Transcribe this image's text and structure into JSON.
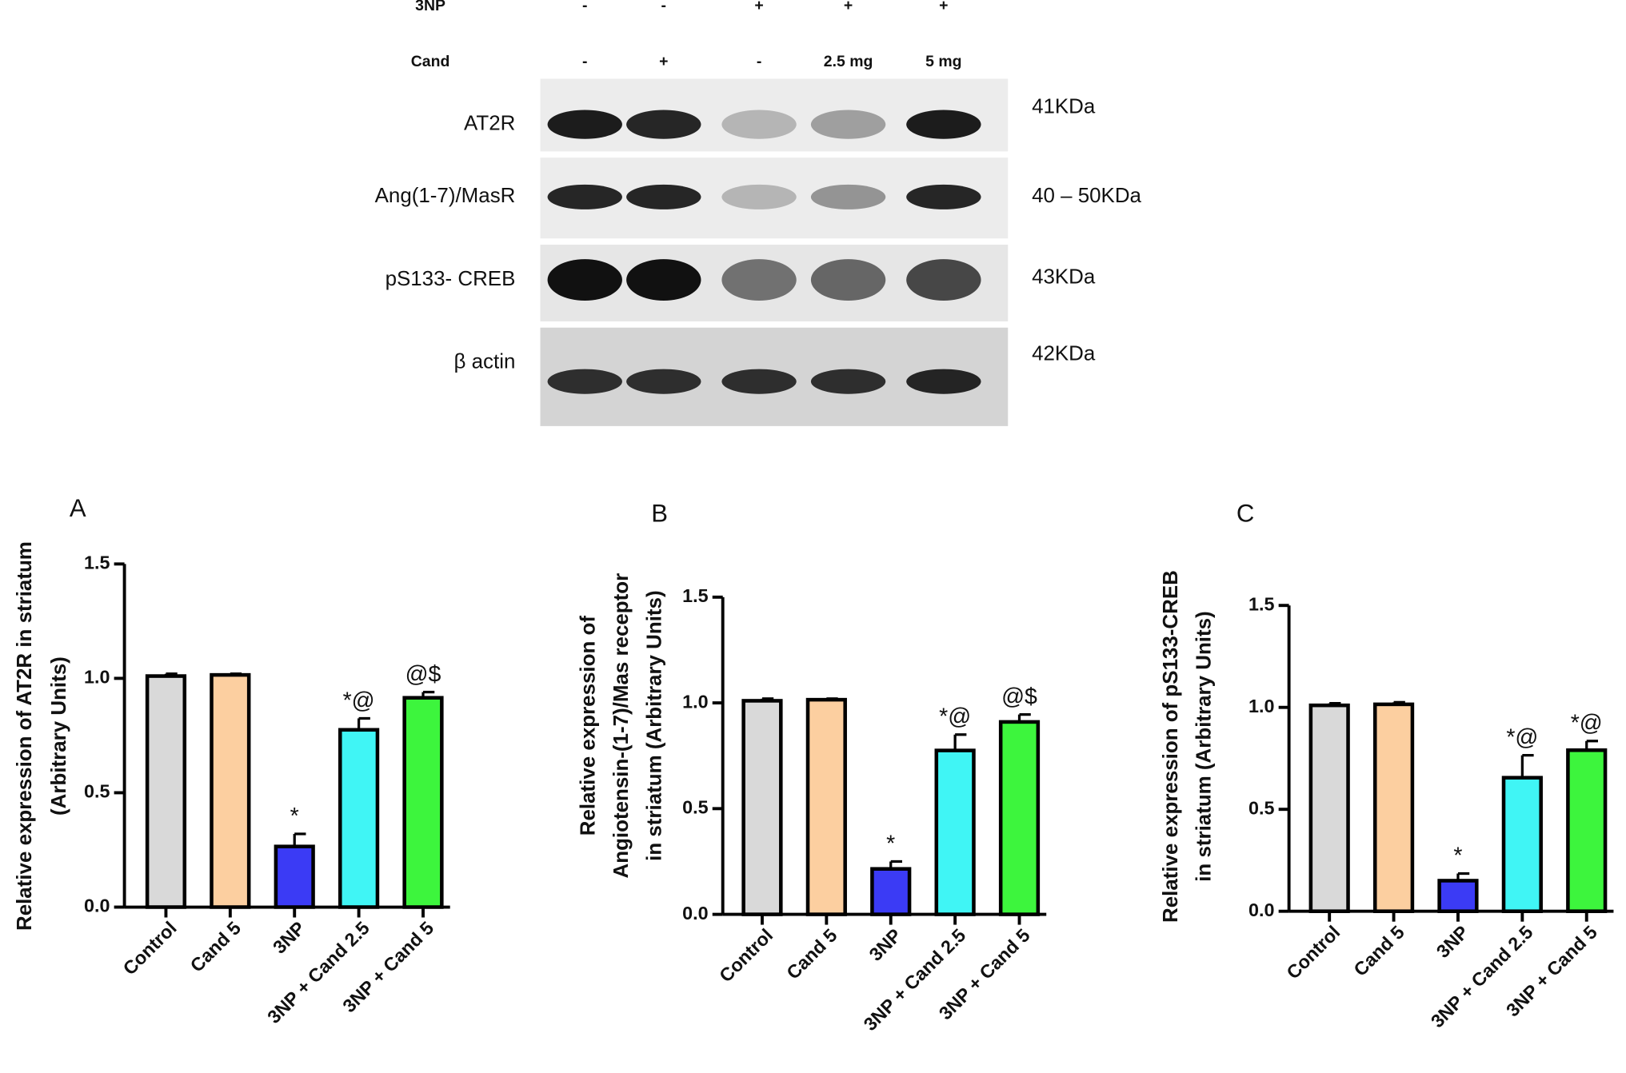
{
  "blot": {
    "conditions": [
      {
        "label": "3NP",
        "values": [
          "-",
          "-",
          "+",
          "+",
          "+"
        ]
      },
      {
        "label": "Cand",
        "values": [
          "-",
          "+",
          "-",
          "2.5 mg",
          "5 mg"
        ]
      }
    ],
    "bands": [
      {
        "label": "AT2R",
        "size": "41KDa"
      },
      {
        "label": "Ang(1-7)/MasR",
        "size": "40 – 50KDa"
      },
      {
        "label": "pS133- CREB",
        "size": "43KDa"
      },
      {
        "label": "β actin",
        "size": "42KDa"
      }
    ]
  },
  "chart_data": [
    {
      "type": "bar",
      "panel": "A",
      "ylabel": [
        "Relative expression of AT2R in striatum",
        "(Arbitrary Units)"
      ],
      "categories": [
        "Control",
        "Cand 5",
        "3NP",
        "3NP + Cand 2.5",
        "3NP + Cand 5"
      ],
      "values": [
        1.01,
        1.015,
        0.265,
        0.775,
        0.915
      ],
      "errors": [
        0.01,
        0.005,
        0.055,
        0.05,
        0.025
      ],
      "annotations": [
        null,
        null,
        "*",
        "*@",
        "@$"
      ],
      "colors": [
        "#d9d9d9",
        "#fccfa0",
        "#3b3bf5",
        "#40f5f5",
        "#3df53d"
      ],
      "ylim": [
        0,
        1.5
      ],
      "yticks": [
        {
          "value": 0,
          "label": "0.0"
        },
        {
          "value": 0.5,
          "label": "0.5"
        },
        {
          "value": 1,
          "label": "1.0"
        },
        {
          "value": 1.5,
          "label": "1.5"
        }
      ]
    },
    {
      "type": "bar",
      "panel": "B",
      "ylabel": [
        "Relative expression of",
        "Angiotensin-(1-7)/Mas receptor",
        "in striatum (Arbitrary Units)"
      ],
      "categories": [
        "Control",
        "Cand 5",
        "3NP",
        "3NP + Cand 2.5",
        "3NP + Cand 5"
      ],
      "values": [
        1.01,
        1.015,
        0.215,
        0.775,
        0.91
      ],
      "errors": [
        0.01,
        0.005,
        0.035,
        0.075,
        0.035
      ],
      "annotations": [
        null,
        null,
        "*",
        "*@",
        "@$"
      ],
      "colors": [
        "#d9d9d9",
        "#fccfa0",
        "#3b3bf5",
        "#40f5f5",
        "#3df53d"
      ],
      "ylim": [
        0,
        1.5
      ],
      "yticks": [
        {
          "value": 0,
          "label": "0.0"
        },
        {
          "value": 0.5,
          "label": "0.5"
        },
        {
          "value": 1,
          "label": "1.0"
        },
        {
          "value": 1.5,
          "label": "1.5"
        }
      ]
    },
    {
      "type": "bar",
      "panel": "C",
      "ylabel": [
        "Relative expression of pS133-CREB",
        "in striatum (Arbitrary Units)"
      ],
      "categories": [
        "Control",
        "Cand 5",
        "3NP",
        "3NP + Cand 2.5",
        "3NP + Cand 5"
      ],
      "values": [
        1.01,
        1.015,
        0.15,
        0.655,
        0.79
      ],
      "errors": [
        0.01,
        0.01,
        0.035,
        0.11,
        0.045
      ],
      "annotations": [
        null,
        null,
        "*",
        "*@",
        "*@"
      ],
      "colors": [
        "#d9d9d9",
        "#fccfa0",
        "#3b3bf5",
        "#40f5f5",
        "#3df53d"
      ],
      "ylim": [
        0,
        1.5
      ],
      "yticks": [
        {
          "value": 0,
          "label": "0.0"
        },
        {
          "value": 0.5,
          "label": "0.5"
        },
        {
          "value": 1,
          "label": "1.0"
        },
        {
          "value": 1.5,
          "label": "1.5"
        }
      ]
    }
  ]
}
